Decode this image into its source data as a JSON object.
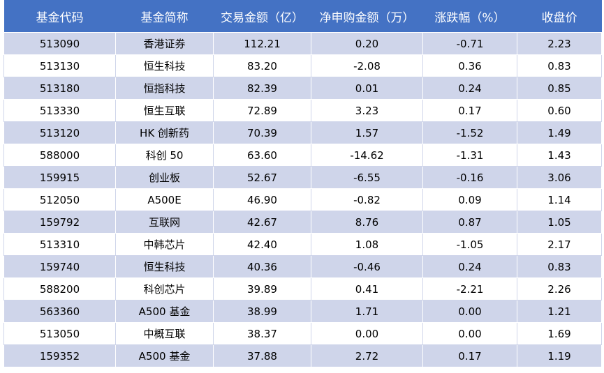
{
  "table": {
    "header": [
      "基金代码",
      "基金简称",
      "交易金额（亿）",
      "净申购金额（万）",
      "涨跌幅（%）",
      "收盘价"
    ],
    "rows": [
      [
        "513090",
        "香港证券",
        "112.21",
        "0.20",
        "-0.71",
        "2.23"
      ],
      [
        "513130",
        "恒生科技",
        "83.20",
        "-2.08",
        "0.36",
        "0.83"
      ],
      [
        "513180",
        "恒指科技",
        "82.39",
        "0.01",
        "0.24",
        "0.85"
      ],
      [
        "513330",
        "恒生互联",
        "72.89",
        "3.23",
        "0.17",
        "0.60"
      ],
      [
        "513120",
        "HK 创新药",
        "70.39",
        "1.57",
        "-1.52",
        "1.49"
      ],
      [
        "588000",
        "科创 50",
        "63.60",
        "-14.62",
        "-1.31",
        "1.43"
      ],
      [
        "159915",
        "创业板",
        "52.67",
        "-6.55",
        "-0.16",
        "3.06"
      ],
      [
        "512050",
        "A500E",
        "46.90",
        "-0.82",
        "0.09",
        "1.14"
      ],
      [
        "159792",
        "互联网",
        "42.67",
        "8.76",
        "0.87",
        "1.05"
      ],
      [
        "513310",
        "中韩芯片",
        "42.40",
        "1.08",
        "-1.05",
        "2.17"
      ],
      [
        "159740",
        "恒生科技",
        "40.36",
        "-0.46",
        "0.24",
        "0.83"
      ],
      [
        "588200",
        "科创芯片",
        "39.89",
        "0.41",
        "-2.21",
        "2.26"
      ],
      [
        "563360",
        "A500 基金",
        "38.99",
        "1.71",
        "0.00",
        "1.21"
      ],
      [
        "513050",
        "中概互联",
        "38.37",
        "0.00",
        "0.00",
        "1.69"
      ],
      [
        "159352",
        "A500 基金",
        "37.88",
        "2.72",
        "0.17",
        "1.19"
      ]
    ]
  }
}
